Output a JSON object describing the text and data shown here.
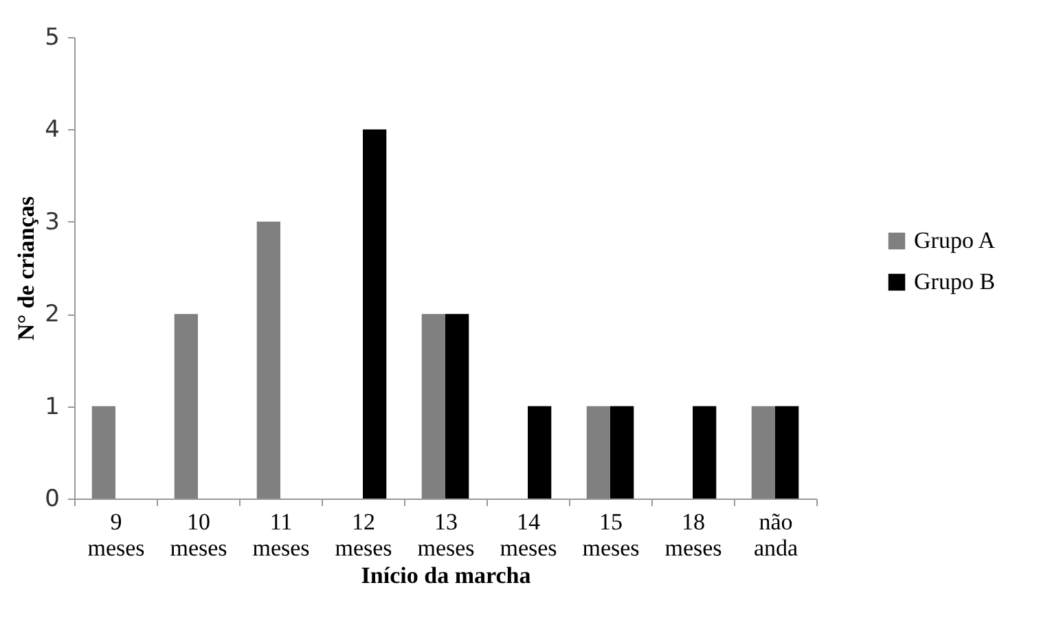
{
  "chart_data": {
    "type": "bar",
    "xlabel": "Início da marcha",
    "ylabel": "N° de crianças",
    "categories": [
      "9 meses",
      "10 meses",
      "11 meses",
      "12 meses",
      "13 meses",
      "14 meses",
      "15 meses",
      "18 meses",
      "não anda"
    ],
    "series": [
      {
        "name": "Grupo A",
        "color": "#808080",
        "values": [
          1,
          2,
          3,
          null,
          2,
          null,
          1,
          null,
          1
        ]
      },
      {
        "name": "Grupo B",
        "color": "#000000",
        "values": [
          null,
          null,
          null,
          4,
          2,
          1,
          1,
          1,
          1
        ]
      }
    ],
    "ylim": [
      0,
      5
    ],
    "yticks": [
      0,
      1,
      2,
      3,
      4,
      5
    ],
    "grid": false,
    "legend": "right"
  }
}
